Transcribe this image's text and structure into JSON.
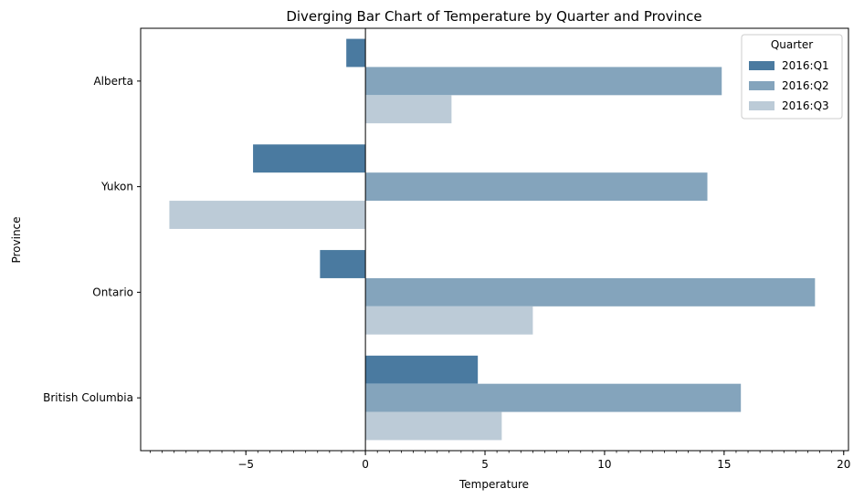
{
  "chart_data": {
    "type": "bar",
    "orientation": "horizontal",
    "title": "Diverging Bar Chart of Temperature by Quarter and Province",
    "xlabel": "Temperature",
    "ylabel": "Province",
    "xlim": [
      -9.4,
      20.2
    ],
    "xticks": [
      {
        "value": -5,
        "label": "−5"
      },
      {
        "value": 0,
        "label": "0"
      },
      {
        "value": 5,
        "label": "5"
      },
      {
        "value": 10,
        "label": "10"
      },
      {
        "value": 15,
        "label": "15"
      },
      {
        "value": 20,
        "label": "20"
      }
    ],
    "minor_tick_step": 0.5,
    "categories": [
      "Alberta",
      "Yukon",
      "Ontario",
      "British Columbia"
    ],
    "series": [
      {
        "name": "2016:Q1",
        "color": "#4a7aa0",
        "values": [
          -0.8,
          -4.7,
          -1.9,
          4.7
        ]
      },
      {
        "name": "2016:Q2",
        "color": "#84a4bc",
        "values": [
          14.9,
          14.3,
          18.8,
          15.7
        ]
      },
      {
        "name": "2016:Q3",
        "color": "#bccbd7",
        "values": [
          3.6,
          -8.2,
          7.0,
          5.7
        ]
      }
    ],
    "legend": {
      "title": "Quarter",
      "position": "top-right"
    },
    "grid": false,
    "zero_line": true
  }
}
